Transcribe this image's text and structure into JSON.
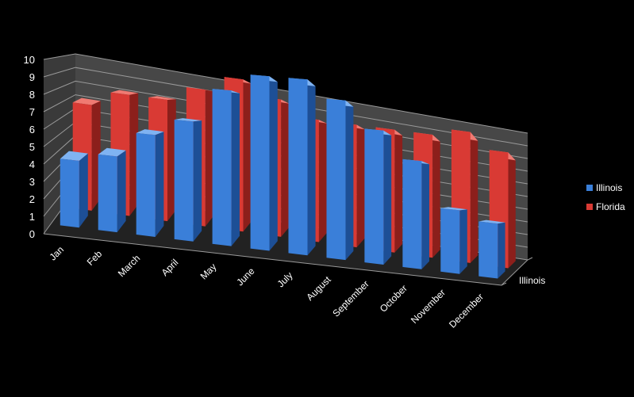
{
  "chart_data": {
    "type": "bar",
    "subtype": "3d-clustered-column",
    "title": "",
    "xlabel": "",
    "ylabel": "",
    "ylim": [
      0,
      10
    ],
    "yticks": [
      "0",
      "1",
      "2",
      "3",
      "4",
      "5",
      "6",
      "7",
      "8",
      "9",
      "10"
    ],
    "categories": [
      "Jan",
      "Feb",
      "March",
      "April",
      "May",
      "June",
      "July",
      "August",
      "September",
      "October",
      "November",
      "December"
    ],
    "depth_axis_label": "Illinois",
    "series": [
      {
        "name": "Illinois",
        "color": "#3a7fd9",
        "values": [
          4.0,
          4.5,
          6.0,
          7.0,
          9.0,
          10.0,
          10.0,
          9.0,
          7.5,
          6.0,
          3.5,
          3.0
        ]
      },
      {
        "name": "Florida",
        "color": "#d93a34",
        "values": [
          7.0,
          8.0,
          8.0,
          9.0,
          10.0,
          9.0,
          8.0,
          8.0,
          8.0,
          8.0,
          8.5,
          7.5
        ]
      }
    ],
    "grid": true,
    "legend_position": "right",
    "background": "#000000"
  }
}
